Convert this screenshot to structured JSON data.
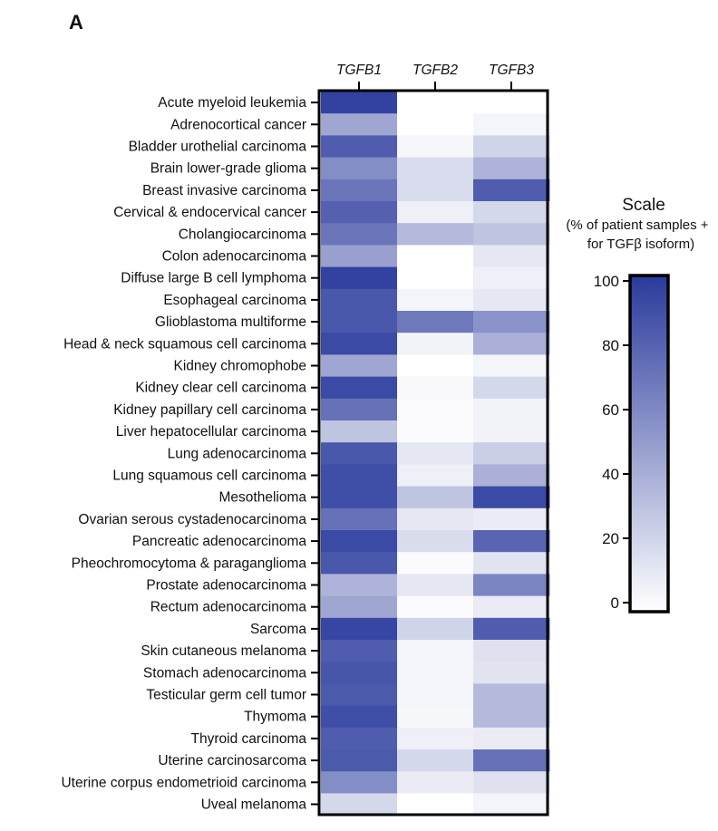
{
  "panel_label": "A",
  "chart_data": {
    "type": "heatmap",
    "columns": [
      "TGFB1",
      "TGFB2",
      "TGFB3"
    ],
    "rows": [
      "Acute myeloid leukemia",
      "Adrenocortical cancer",
      "Bladder urothelial carcinoma",
      "Brain lower-grade glioma",
      "Breast invasive carcinoma",
      "Cervical & endocervical cancer",
      "Cholangiocarcinoma",
      "Colon adenocarcinoma",
      "Diffuse large B cell lymphoma",
      "Esophageal carcinoma",
      "Glioblastoma multiforme",
      "Head & neck squamous cell carcinoma",
      "Kidney chromophobe",
      "Kidney clear cell carcinoma",
      "Kidney papillary cell carcinoma",
      "Liver hepatocellular carcinoma",
      "Lung adenocarcinoma",
      "Lung squamous cell carcinoma",
      "Mesothelioma",
      "Ovarian serous cystadenocarcinoma",
      "Pancreatic adenocarcinoma",
      "Pheochromocytoma & paraganglioma",
      "Prostate adenocarcinoma",
      "Rectum adenocarcinoma",
      "Sarcoma",
      "Skin cutaneous melanoma",
      "Stomach adenocarcinoma",
      "Testicular germ cell tumor",
      "Thymoma",
      "Thyroid carcinoma",
      "Uterine carcinosarcoma",
      "Uterine corpus endometrioid carcinoma",
      "Uveal melanoma"
    ],
    "values": [
      [
        96,
        0,
        0
      ],
      [
        45,
        0,
        5
      ],
      [
        82,
        4,
        22
      ],
      [
        58,
        18,
        38
      ],
      [
        70,
        18,
        82
      ],
      [
        80,
        8,
        20
      ],
      [
        70,
        35,
        30
      ],
      [
        48,
        0,
        12
      ],
      [
        96,
        0,
        8
      ],
      [
        85,
        5,
        12
      ],
      [
        85,
        68,
        55
      ],
      [
        92,
        6,
        40
      ],
      [
        45,
        0,
        5
      ],
      [
        92,
        3,
        20
      ],
      [
        72,
        2,
        6
      ],
      [
        30,
        2,
        6
      ],
      [
        85,
        12,
        25
      ],
      [
        90,
        8,
        40
      ],
      [
        90,
        30,
        92
      ],
      [
        72,
        12,
        10
      ],
      [
        92,
        18,
        78
      ],
      [
        85,
        2,
        14
      ],
      [
        38,
        12,
        62
      ],
      [
        45,
        2,
        10
      ],
      [
        94,
        22,
        82
      ],
      [
        82,
        5,
        15
      ],
      [
        86,
        5,
        14
      ],
      [
        84,
        5,
        35
      ],
      [
        90,
        4,
        35
      ],
      [
        82,
        8,
        10
      ],
      [
        84,
        20,
        72
      ],
      [
        58,
        10,
        15
      ],
      [
        20,
        0,
        5
      ]
    ],
    "colorscale": {
      "min": 0,
      "max": 100,
      "low_color": "#ffffff",
      "high_color": "#2a3a9c"
    },
    "scale": {
      "title": "Scale",
      "subtitle_line1": "(% of patient samples +",
      "subtitle_line2": "for TGFβ isoform)",
      "ticks": [
        0,
        20,
        40,
        60,
        80,
        100
      ]
    }
  }
}
